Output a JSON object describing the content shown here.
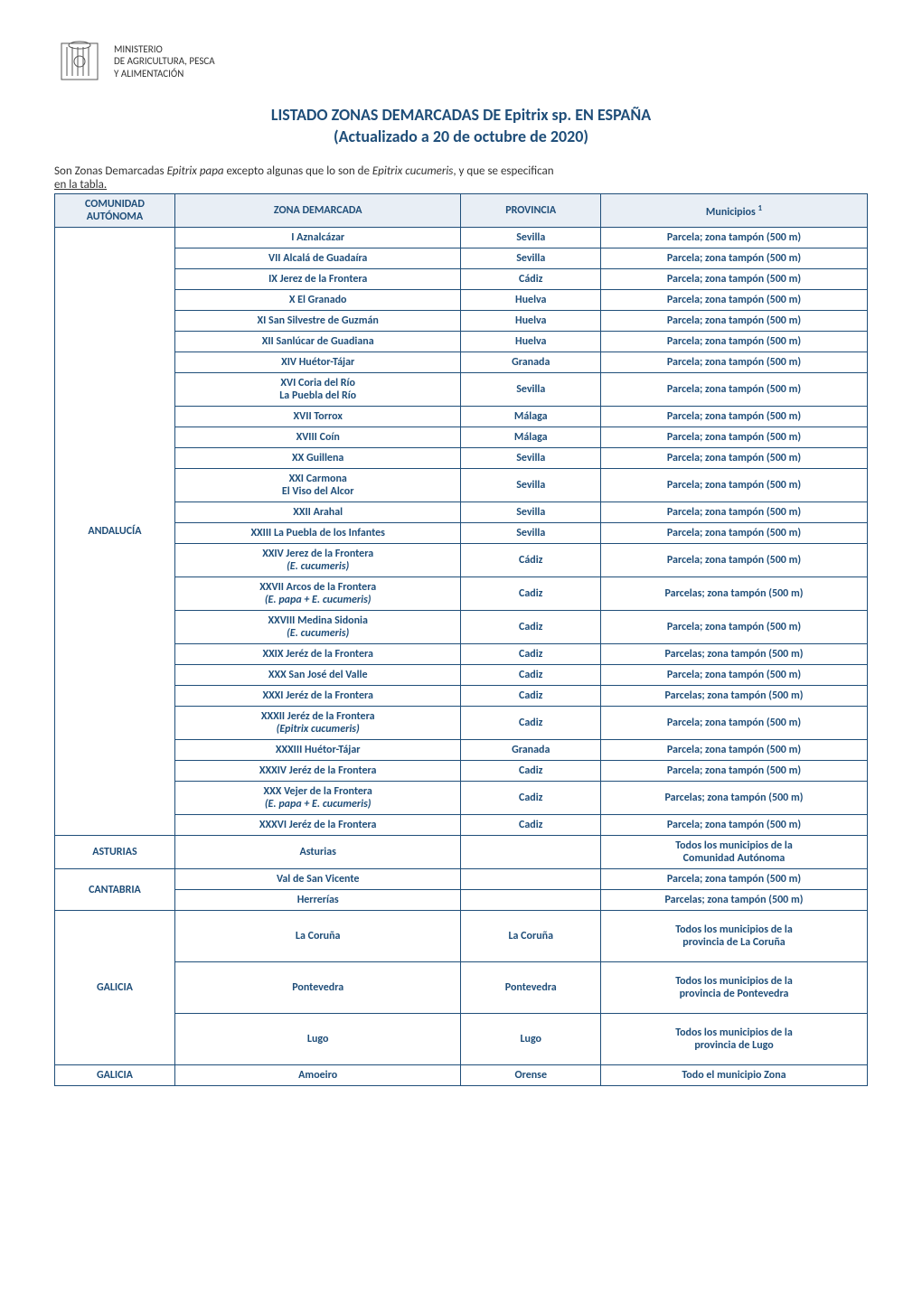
{
  "logo": {
    "ministry_line1": "MINISTERIO",
    "ministry_line2": "DE AGRICULTURA, PESCA",
    "ministry_line3": "Y ALIMENTACIÓN"
  },
  "title_line1": "LISTADO ZONAS DEMARCADAS DE Epitrix sp. EN ESPAÑA",
  "title_line2": "(Actualizado a 20 de octubre de 2020)",
  "intro_prefix": "Son Zonas Demarcadas ",
  "intro_i1": "Epitrix papa",
  "intro_mid": " excepto algunas que lo son de ",
  "intro_i2": "Epitrix cucumeris",
  "intro_suffix": ", y que se especifican ",
  "intro_underline": "en la tabla.",
  "headers": {
    "comunidad": "COMUNIDAD AUTÓNOMA",
    "zona": "ZONA DEMARCADA",
    "provincia": "PROVINCIA",
    "municipios": "Municipios",
    "municipios_sup": "1"
  },
  "andalucia": {
    "label": "ANDALUCÍA",
    "rows": [
      {
        "zona": "I Aznalcázar",
        "provincia": "Sevilla",
        "muni": "Parcela; zona tampón (500 m)"
      },
      {
        "zona": "VII Alcalá de Guadaíra",
        "provincia": "Sevilla",
        "muni": "Parcela; zona tampón (500 m)"
      },
      {
        "zona": "IX Jerez de la Frontera",
        "provincia": "Cádiz",
        "muni": "Parcela; zona tampón (500 m)"
      },
      {
        "zona": "X El Granado",
        "provincia": "Huelva",
        "muni": "Parcela; zona tampón (500 m)"
      },
      {
        "zona": "XI San Silvestre de Guzmán",
        "provincia": "Huelva",
        "muni": "Parcela; zona tampón (500 m)"
      },
      {
        "zona": "XII Sanlúcar de Guadiana",
        "provincia": "Huelva",
        "muni": "Parcela; zona tampón (500 m)"
      },
      {
        "zona": "XIV Huétor-Tájar",
        "provincia": "Granada",
        "muni": "Parcela; zona tampón (500 m)"
      },
      {
        "zona_l1": "XVI Coria del Río",
        "zona_l2": "La Puebla del Río",
        "provincia": "Sevilla",
        "muni": "Parcela; zona tampón (500 m)"
      },
      {
        "zona": "XVII Torrox",
        "provincia": "Málaga",
        "muni": "Parcela; zona tampón (500 m)"
      },
      {
        "zona": "XVIII Coín",
        "provincia": "Málaga",
        "muni": "Parcela; zona tampón (500 m)"
      },
      {
        "zona": "XX Guillena",
        "provincia": "Sevilla",
        "muni": "Parcela; zona tampón (500 m)"
      },
      {
        "zona_l1": "XXI Carmona",
        "zona_l2": "El Viso del Alcor",
        "provincia": "Sevilla",
        "muni": "Parcela; zona tampón (500 m)"
      },
      {
        "zona": "XXII Arahal",
        "provincia": "Sevilla",
        "muni": "Parcela; zona tampón (500 m)"
      },
      {
        "zona": "XXIII La Puebla de los Infantes",
        "provincia": "Sevilla",
        "muni": "Parcela; zona tampón (500 m)"
      },
      {
        "zona_l1": "XXIV Jerez de la Frontera",
        "zona_i": "(E. cucumeris)",
        "provincia": "Cádiz",
        "muni": "Parcela; zona tampón (500 m)"
      },
      {
        "zona_l1": "XXVII Arcos de la Frontera",
        "zona_i": "(E. papa + E. cucumeris)",
        "provincia": "Cadiz",
        "muni": "Parcelas; zona tampón (500 m)"
      },
      {
        "zona_l1": "XXVIII  Medina Sidonia",
        "zona_i": "(E. cucumeris)",
        "provincia": "Cadiz",
        "muni": "Parcela; zona tampón (500 m)"
      },
      {
        "zona": "XXIX Jeréz de la Frontera",
        "provincia": "Cadiz",
        "muni": "Parcelas; zona tampón (500 m)"
      },
      {
        "zona": "XXX San José del Valle",
        "provincia": "Cadiz",
        "muni": "Parcela; zona tampón (500 m)"
      },
      {
        "zona": "XXXI Jeréz de la Frontera",
        "provincia": "Cadiz",
        "muni": "Parcelas; zona tampón (500 m)"
      },
      {
        "zona_l1": "XXXII Jeréz de la Frontera",
        "zona_i": "(Epitrix cucumeris)",
        "provincia": "Cadiz",
        "muni": "Parcela; zona tampón (500 m)"
      },
      {
        "zona": "XXXIII Huétor-Tájar",
        "provincia": "Granada",
        "muni": "Parcela; zona tampón (500 m)"
      },
      {
        "zona": "XXXIV Jeréz de la Frontera",
        "provincia": "Cadiz",
        "muni": "Parcela; zona tampón (500 m)"
      },
      {
        "zona_l1": "XXX Vejer de la Frontera",
        "zona_i": "(E. papa + E. cucumeris)",
        "provincia": "Cadiz",
        "muni": "Parcelas; zona tampón (500 m)"
      },
      {
        "zona": "XXXVI Jeréz de la Frontera",
        "provincia": "Cadiz",
        "muni": "Parcela; zona tampón (500 m)"
      }
    ]
  },
  "asturias": {
    "label": "ASTURIAS",
    "zona": "Asturias",
    "provincia": "",
    "muni_l1": "Todos los municipios de la",
    "muni_l2": "Comunidad Autónoma"
  },
  "cantabria": {
    "label": "CANTABRIA",
    "rows": [
      {
        "zona": "Val de San Vicente",
        "provincia": "",
        "muni": "Parcela; zona tampón (500 m)"
      },
      {
        "zona": "Herrerías",
        "provincia": "",
        "muni": "Parcelas; zona tampón (500 m)"
      }
    ]
  },
  "galicia1": {
    "label": "GALICIA",
    "rows": [
      {
        "zona": "La Coruña",
        "provincia": "La Coruña",
        "muni_l1": "Todos los municipios de la",
        "muni_l2": "provincia de La Coruña"
      },
      {
        "zona": "Pontevedra",
        "provincia": "Pontevedra",
        "muni_l1": "Todos los municipios de la",
        "muni_l2": "provincia de Pontevedra"
      },
      {
        "zona": "Lugo",
        "provincia": "Lugo",
        "muni_l1": "Todos los municipios de la",
        "muni_l2": "provincia de Lugo"
      }
    ]
  },
  "galicia2": {
    "label": "GALICIA",
    "zona": "Amoeiro",
    "provincia": "Orense",
    "muni": "Todo el municipio Zona"
  },
  "colors": {
    "primary": "#1f4e79",
    "header_bg": "#e8eef5",
    "text_black": "#333333"
  }
}
